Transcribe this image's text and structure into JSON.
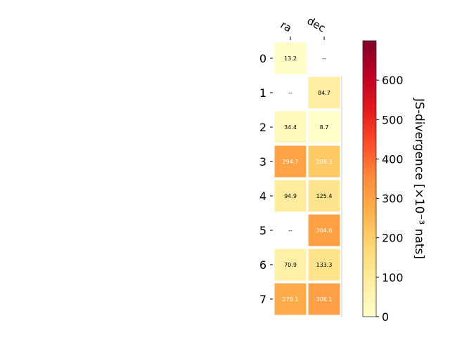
{
  "chart_data": {
    "type": "heatmap",
    "columns": [
      "ra",
      "dec"
    ],
    "rows": [
      "0",
      "1",
      "2",
      "3",
      "4",
      "5",
      "6",
      "7"
    ],
    "missing_label": "--",
    "values": [
      [
        13.2,
        null
      ],
      [
        null,
        84.7
      ],
      [
        34.4,
        8.7
      ],
      [
        294.7,
        209.3
      ],
      [
        94.9,
        125.4
      ],
      [
        null,
        304.6
      ],
      [
        70.9,
        133.3
      ],
      [
        279.1,
        308.1
      ]
    ],
    "value_labels": [
      [
        "13.2",
        "--"
      ],
      [
        "--",
        "84.7"
      ],
      [
        "34.4",
        "8.7"
      ],
      [
        "294.7",
        "209.3"
      ],
      [
        "94.9",
        "125.4"
      ],
      [
        "--",
        "304.6"
      ],
      [
        "70.9",
        "133.3"
      ],
      [
        "279.1",
        "308.1"
      ]
    ],
    "colorbar": {
      "label": "JS-divergence [×10⁻³ nats]",
      "range": [
        0,
        700
      ],
      "ticks": [
        0,
        100,
        200,
        300,
        400,
        500,
        600
      ],
      "tick_labels": [
        "0",
        "100",
        "200",
        "300",
        "400",
        "500",
        "600"
      ],
      "colormap": "YlOrRd"
    },
    "colors": {
      "colormap_stops": [
        "#ffffcc",
        "#ffeda0",
        "#fed976",
        "#feb24c",
        "#fd8d3c",
        "#fc4e2a",
        "#e31a1c",
        "#bd0026",
        "#800026"
      ],
      "dark_text": "#000000",
      "light_text": "#ffffff"
    }
  }
}
